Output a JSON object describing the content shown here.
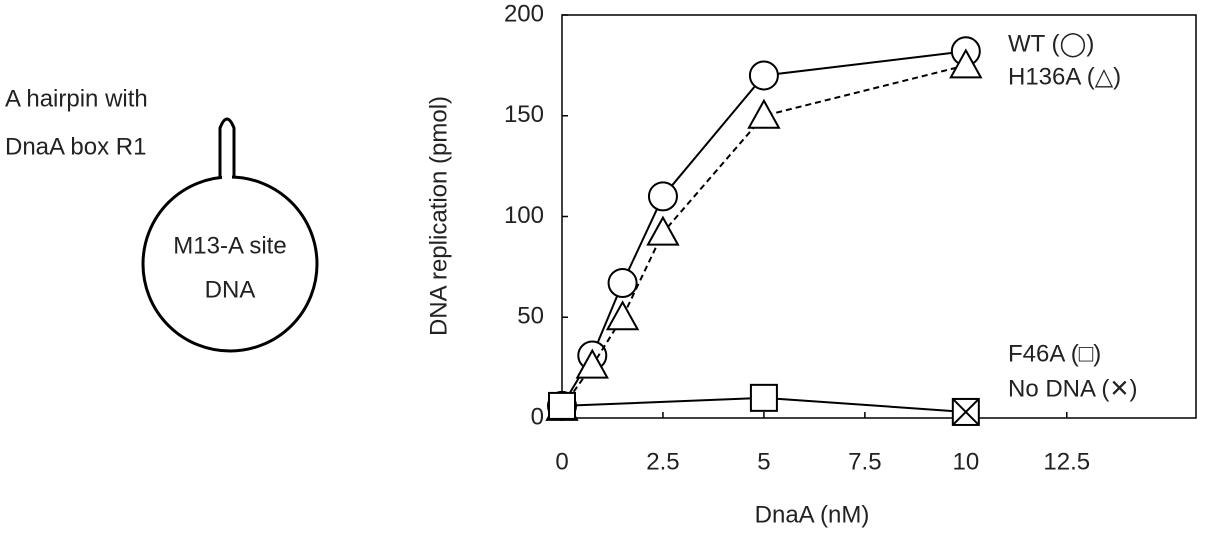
{
  "diagram": {
    "hairpin_label": [
      "A hairpin with",
      "DnaA box R1"
    ],
    "circle_label": [
      "M13-A site",
      "DNA"
    ]
  },
  "chart_data": {
    "type": "line",
    "x_label": "DnaA (nM)",
    "y_label": "DNA replication (pmol)",
    "xlim": [
      0,
      15.7
    ],
    "xticks": [
      0,
      2.5,
      5,
      7.5,
      10,
      12.5
    ],
    "ylim": [
      0,
      200
    ],
    "yticks": [
      0,
      50,
      100,
      150,
      200
    ],
    "series": [
      {
        "name": "WT (◯)",
        "color": "#000000",
        "marker": "circle",
        "dash": false,
        "x": [
          0,
          0.75,
          1.5,
          2.5,
          5,
          10
        ],
        "values": [
          6,
          31,
          67,
          110,
          170,
          182
        ]
      },
      {
        "name": "H136A (△)",
        "color": "#000000",
        "marker": "triangle",
        "dash": true,
        "x": [
          0,
          0.75,
          1.5,
          2.5,
          5,
          10
        ],
        "values": [
          5,
          26,
          50,
          92,
          150,
          175
        ]
      },
      {
        "name": "F46A (□)",
        "color": "#000000",
        "marker": "square",
        "dash": false,
        "x": [
          0,
          5,
          10
        ],
        "values": [
          6,
          10,
          3
        ]
      },
      {
        "name": "No DNA (✕)",
        "color": "#000000",
        "marker": "x",
        "dash": false,
        "x": [
          10
        ],
        "values": [
          3
        ]
      }
    ]
  }
}
